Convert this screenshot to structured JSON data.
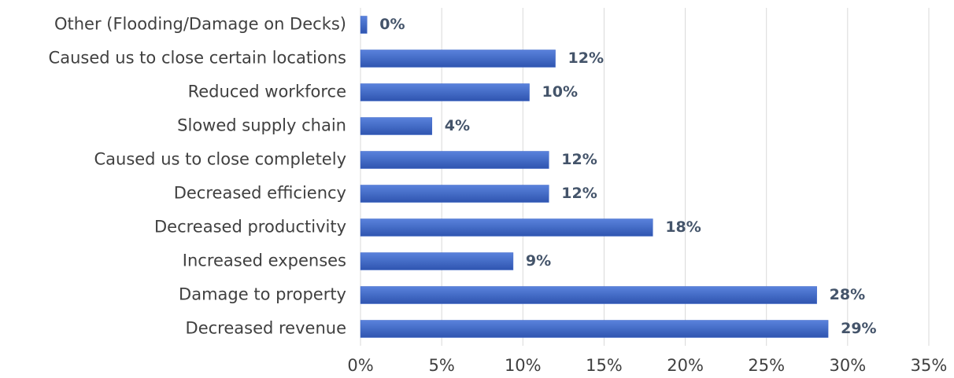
{
  "chart_data": {
    "type": "bar",
    "orientation": "horizontal",
    "categories": [
      "Other (Flooding/Damage on Decks)",
      "Caused us to close certain locations",
      "Reduced workforce",
      "Slowed supply chain",
      "Caused us to close completely",
      "Decreased efficiency",
      "Decreased productivity",
      "Increased expenses",
      "Damage to property",
      "Decreased revenue"
    ],
    "values": [
      0.4,
      12.0,
      10.4,
      4.4,
      11.6,
      11.6,
      18.0,
      9.4,
      28.1,
      28.8
    ],
    "value_labels": [
      "0%",
      "12%",
      "10%",
      "4%",
      "12%",
      "12%",
      "18%",
      "9%",
      "28%",
      "29%"
    ],
    "color": "#4169c9",
    "xlim": [
      0,
      35
    ],
    "xticks": [
      {
        "value": 0,
        "label": "0%"
      },
      {
        "value": 5,
        "label": "5%"
      },
      {
        "value": 10,
        "label": "10%"
      },
      {
        "value": 15,
        "label": "15%"
      },
      {
        "value": 20,
        "label": "20%"
      },
      {
        "value": 25,
        "label": "25%"
      },
      {
        "value": 30,
        "label": "30%"
      },
      {
        "value": 35,
        "label": "35%"
      }
    ],
    "grid": true
  }
}
